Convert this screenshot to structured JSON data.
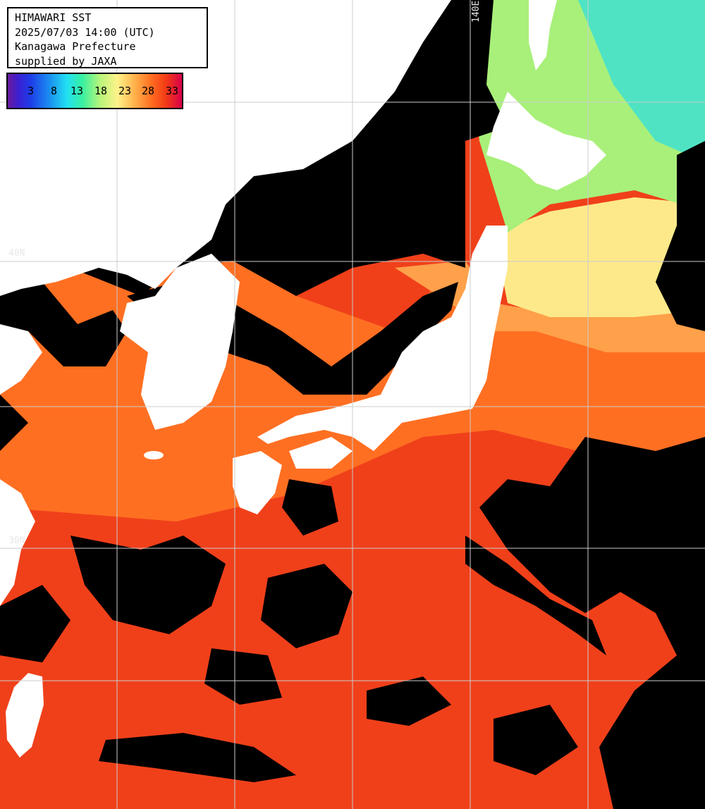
{
  "header": {
    "line1": "HIMAWARI SST",
    "line2": "2025/07/03 14:00 (UTC)",
    "line3": "Kanagawa Prefecture",
    "line4": "supplied by JAXA"
  },
  "legend": {
    "ticks": [
      "3",
      "8",
      "13",
      "18",
      "23",
      "28",
      "33"
    ],
    "unit": ""
  },
  "grid": {
    "lat_labels": [
      "40N",
      "30N"
    ],
    "lon_labels": [
      "140E"
    ]
  },
  "colors": {
    "land": "#ffffff",
    "cloud": "#000000",
    "grid_line": "#cccccc",
    "sst_cool": "#b7f57a",
    "sst_mid": "#fff28a",
    "sst_warm": "#ff6a1f",
    "sst_hot": "#f23a16"
  }
}
